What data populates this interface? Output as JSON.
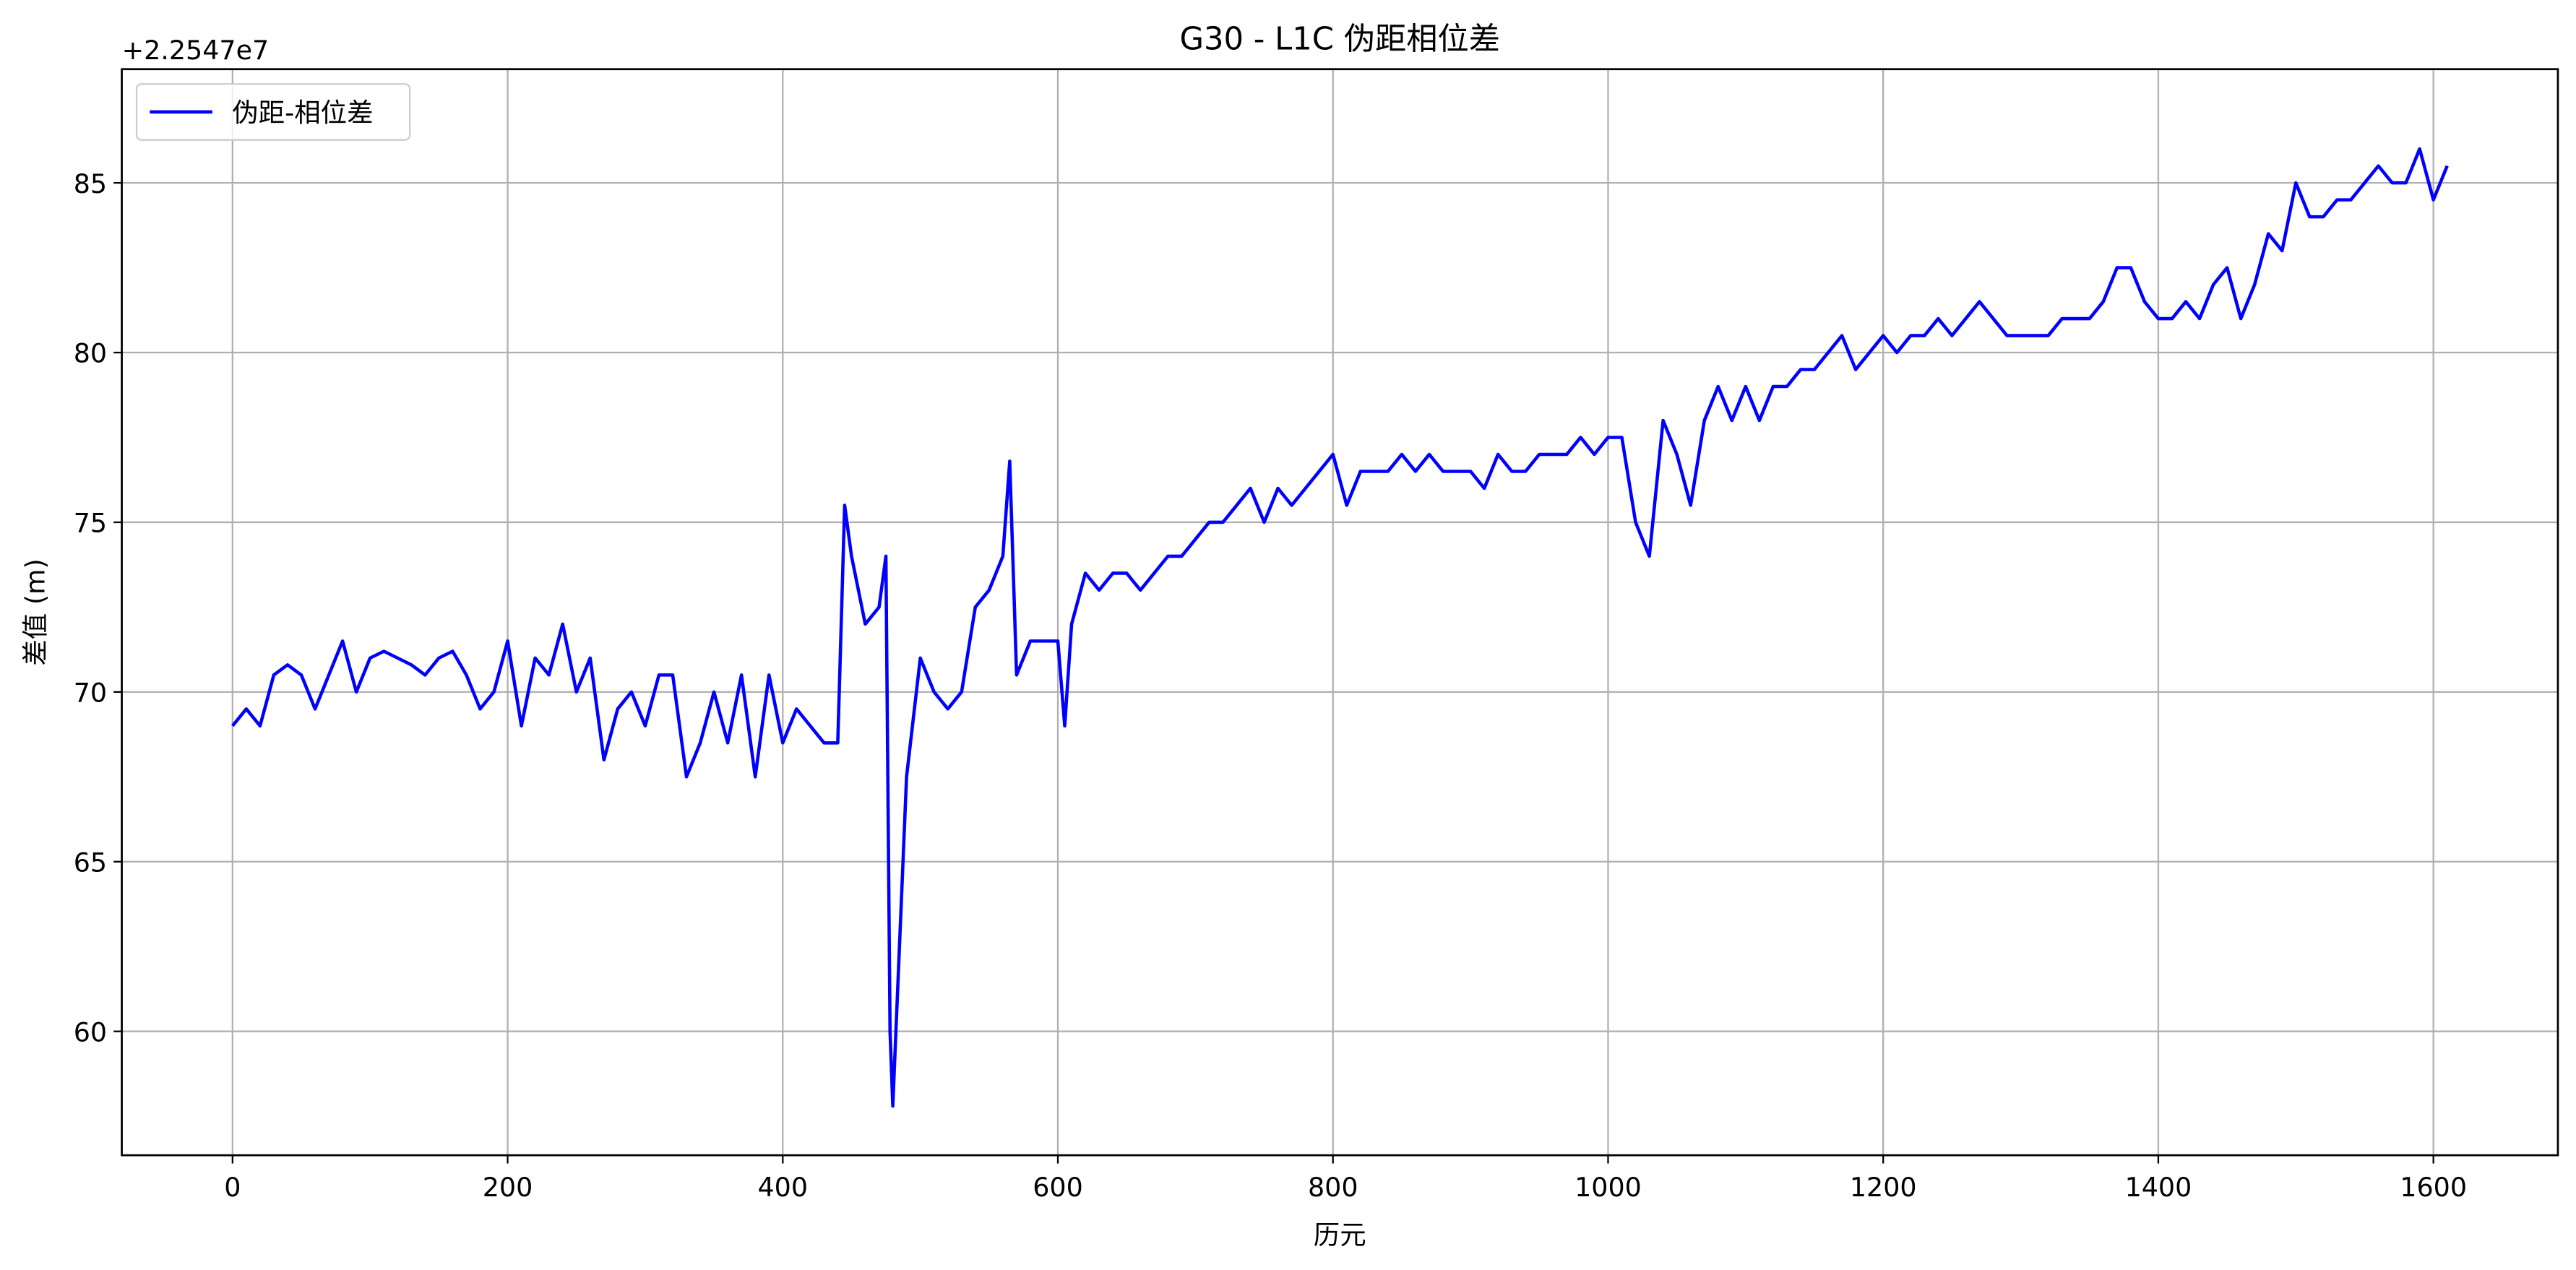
{
  "chart_data": {
    "type": "line",
    "title": "G30 - L1C 伪距相位差",
    "xlabel": "历元",
    "ylabel": "差值 (m)",
    "y_offset_label": "+2.2547e7",
    "x": [
      0,
      10,
      20,
      30,
      40,
      50,
      60,
      70,
      80,
      90,
      100,
      110,
      120,
      130,
      140,
      150,
      160,
      170,
      180,
      190,
      200,
      210,
      220,
      230,
      240,
      250,
      260,
      270,
      280,
      290,
      300,
      310,
      320,
      330,
      340,
      350,
      360,
      370,
      380,
      390,
      400,
      410,
      420,
      430,
      440,
      445,
      450,
      460,
      470,
      475,
      478,
      480,
      490,
      500,
      510,
      520,
      530,
      540,
      550,
      560,
      565,
      570,
      580,
      590,
      600,
      605,
      610,
      620,
      630,
      640,
      650,
      660,
      670,
      680,
      690,
      700,
      710,
      720,
      730,
      740,
      750,
      760,
      770,
      780,
      790,
      800,
      810,
      820,
      830,
      840,
      850,
      860,
      870,
      880,
      890,
      900,
      910,
      920,
      930,
      940,
      950,
      960,
      970,
      980,
      990,
      1000,
      1010,
      1020,
      1030,
      1040,
      1050,
      1060,
      1070,
      1080,
      1090,
      1100,
      1110,
      1120,
      1130,
      1140,
      1150,
      1160,
      1170,
      1180,
      1190,
      1200,
      1210,
      1220,
      1230,
      1240,
      1250,
      1260,
      1270,
      1280,
      1290,
      1300,
      1310,
      1320,
      1330,
      1340,
      1350,
      1360,
      1370,
      1380,
      1390,
      1400,
      1410,
      1420,
      1430,
      1440,
      1450,
      1460,
      1470,
      1480,
      1490,
      1500,
      1510,
      1520,
      1530,
      1540,
      1550,
      1560,
      1570,
      1580,
      1590,
      1600,
      1610
    ],
    "series": [
      {
        "name": "伪距-相位差",
        "color": "#0000ff",
        "values": [
          69,
          69.5,
          69,
          70.5,
          70.8,
          70.5,
          69.5,
          70.5,
          71.5,
          70,
          71,
          71.2,
          71,
          70.8,
          70.5,
          71,
          71.2,
          70.5,
          69.5,
          70,
          71.5,
          69,
          71,
          70.5,
          72,
          70,
          71,
          68,
          69.5,
          70,
          69,
          70.5,
          70.5,
          67.5,
          68.5,
          70,
          68.5,
          70.5,
          67.5,
          70.5,
          68.5,
          69.5,
          69,
          68.5,
          68.5,
          75.5,
          74,
          72,
          72.5,
          74,
          60,
          57.8,
          67.5,
          71,
          70,
          69.5,
          70,
          72.5,
          73,
          74,
          76.8,
          70.5,
          71.5,
          71.5,
          71.5,
          69,
          72,
          73.5,
          73,
          73.5,
          73.5,
          73,
          73.5,
          74,
          74,
          74.5,
          75,
          75,
          75.5,
          76,
          75,
          76,
          75.5,
          76,
          76.5,
          77,
          75.5,
          76.5,
          76.5,
          76.5,
          77,
          76.5,
          77,
          76.5,
          76.5,
          76.5,
          76,
          77,
          76.5,
          76.5,
          77,
          77,
          77,
          77.5,
          77,
          77.5,
          77.5,
          75,
          74,
          78,
          77,
          75.5,
          78,
          79,
          78,
          79,
          78,
          79,
          79,
          79.5,
          79.5,
          80,
          80.5,
          79.5,
          80,
          80.5,
          80,
          80.5,
          80.5,
          81,
          80.5,
          81,
          81.5,
          81,
          80.5,
          80.5,
          80.5,
          80.5,
          81,
          81,
          81,
          81.5,
          82.5,
          82.5,
          81.5,
          81,
          81,
          81.5,
          81,
          82,
          82.5,
          81,
          82,
          83.5,
          83,
          85,
          84,
          84,
          84.5,
          84.5,
          85,
          85.5,
          85,
          85,
          86,
          84.5,
          85.5
        ]
      }
    ],
    "xlim": [
      -80.5,
      1690.5
    ],
    "xticks": [
      0,
      200,
      400,
      600,
      800,
      1000,
      1200,
      1400,
      1600
    ],
    "ylim": [
      56.35,
      88.35
    ],
    "yticks": [
      60,
      65,
      70,
      75,
      80,
      85
    ],
    "grid": true,
    "legend": "upper left"
  }
}
